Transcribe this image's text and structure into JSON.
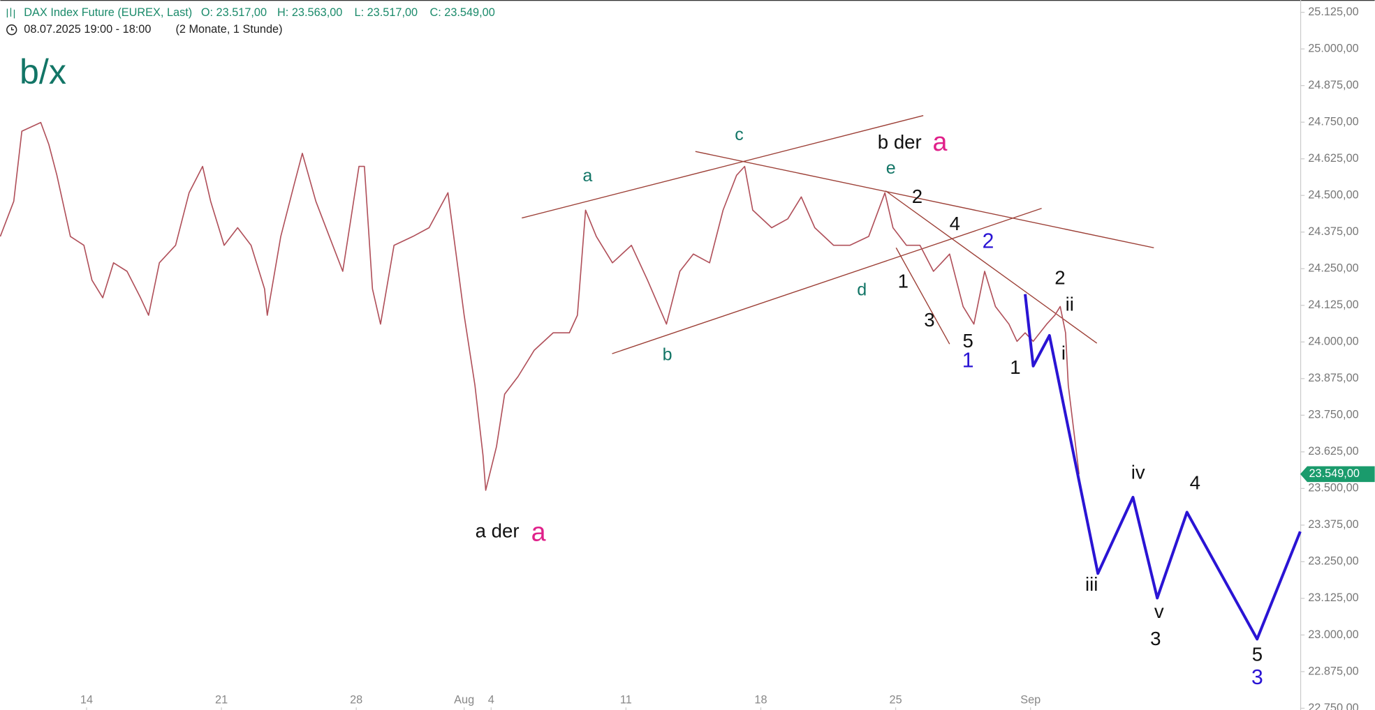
{
  "header": {
    "instrument": "DAX Index Future (EUREX, Last)",
    "open": "O: 23.517,00",
    "high": "H: 23.563,00",
    "low": "L: 23.517,00",
    "close": "C: 23.549,00",
    "session": "08.07.2025 19:00 - 18:00",
    "range": "(2 Monate, 1 Stunde)"
  },
  "chart_data": {
    "type": "line",
    "xlim": [
      -3.2,
      45.0
    ],
    "ylim": [
      22744,
      25167
    ],
    "xticks": [
      {
        "value": 0,
        "label": "14"
      },
      {
        "value": 5,
        "label": "21"
      },
      {
        "value": 10,
        "label": "28"
      },
      {
        "value": 14,
        "label": "Aug"
      },
      {
        "value": 15,
        "label": "4"
      },
      {
        "value": 20,
        "label": "11"
      },
      {
        "value": 25,
        "label": "18"
      },
      {
        "value": 30,
        "label": "25"
      },
      {
        "value": 35,
        "label": "Sep"
      }
    ],
    "yticks": [
      {
        "value": 25125,
        "label": "25.125,00"
      },
      {
        "value": 25000,
        "label": "25.000,00"
      },
      {
        "value": 24875,
        "label": "24.875,00"
      },
      {
        "value": 24750,
        "label": "24.750,00"
      },
      {
        "value": 24625,
        "label": "24.625,00"
      },
      {
        "value": 24500,
        "label": "24.500,00"
      },
      {
        "value": 24375,
        "label": "24.375,00"
      },
      {
        "value": 24250,
        "label": "24.250,00"
      },
      {
        "value": 24125,
        "label": "24.125,00"
      },
      {
        "value": 24000,
        "label": "24.000,00"
      },
      {
        "value": 23875,
        "label": "23.875,00"
      },
      {
        "value": 23750,
        "label": "23.750,00"
      },
      {
        "value": 23625,
        "label": "23.625,00"
      },
      {
        "value": 23500,
        "label": "23.500,00"
      },
      {
        "value": 23375,
        "label": "23.375,00"
      },
      {
        "value": 23250,
        "label": "23.250,00"
      },
      {
        "value": 23125,
        "label": "23.125,00"
      },
      {
        "value": 23000,
        "label": "23.000,00"
      },
      {
        "value": 22875,
        "label": "22.875,00"
      },
      {
        "value": 22750,
        "label": "22.750,00"
      }
    ],
    "series": [
      {
        "color": "#b0505a",
        "width": 1.3,
        "x": [
          -3.2,
          -2.7,
          -2.4,
          -1.7,
          -1.4,
          -1.1,
          -0.6,
          -0.1,
          0.2,
          0.6,
          1.0,
          1.5,
          2.0,
          2.3,
          2.7,
          3.3,
          3.8,
          4.3,
          4.6,
          5.1,
          5.6,
          6.1,
          6.6,
          6.7,
          7.2,
          7.7,
          8.0,
          8.5,
          9.0,
          9.5,
          9.8,
          10.1,
          10.3,
          10.6,
          10.9,
          11.4,
          12.1,
          12.7,
          13.4,
          13.7,
          14.0,
          14.4,
          14.7,
          14.8,
          15.2,
          15.5,
          16.0,
          16.6,
          17.3,
          17.9,
          18.2,
          18.5,
          18.9,
          19.5,
          20.2,
          20.8,
          21.5,
          22.0,
          22.5,
          23.1,
          23.6,
          24.1,
          24.4,
          24.7,
          25.4,
          26.0,
          26.5,
          27.0,
          27.7,
          28.3,
          29.0,
          29.6,
          29.9,
          30.4,
          30.9,
          31.4,
          31.7,
          32.0,
          32.5,
          32.9,
          33.3,
          33.7,
          34.2,
          34.5,
          34.8,
          35.1,
          35.6,
          35.9,
          36.1,
          36.3,
          36.4,
          36.8
        ],
        "values": [
          24360,
          24480,
          24719,
          24749,
          24674,
          24569,
          24360,
          24330,
          24211,
          24151,
          24270,
          24241,
          24151,
          24091,
          24270,
          24330,
          24509,
          24599,
          24480,
          24330,
          24390,
          24330,
          24181,
          24091,
          24360,
          24539,
          24644,
          24480,
          24360,
          24241,
          24420,
          24599,
          24599,
          24181,
          24061,
          24330,
          24360,
          24390,
          24509,
          24300,
          24091,
          23852,
          23613,
          23494,
          23643,
          23822,
          23882,
          23972,
          24031,
          24031,
          24091,
          24450,
          24360,
          24270,
          24330,
          24211,
          24061,
          24241,
          24300,
          24270,
          24450,
          24569,
          24599,
          24450,
          24390,
          24420,
          24495,
          24390,
          24330,
          24330,
          24360,
          24509,
          24390,
          24330,
          24330,
          24241,
          24270,
          24300,
          24121,
          24061,
          24241,
          24121,
          24061,
          24002,
          24031,
          24002,
          24061,
          24091,
          24121,
          24031,
          23852,
          23549
        ]
      },
      {
        "color": "#2a14d4",
        "width": 3.2,
        "x": [
          34.8,
          35.1,
          35.7,
          37.5,
          38.8,
          39.7,
          40.8,
          43.4,
          45.0
        ],
        "values": [
          24163,
          23918,
          24022,
          23210,
          23470,
          23126,
          23419,
          22986,
          23353
        ]
      }
    ],
    "last_price": {
      "value": 23549,
      "label": "23.549,00",
      "color": "#1a9b6c"
    },
    "annotations": [
      {
        "text": "b/x",
        "color": "#127566"
      },
      {
        "text": "a",
        "color": "#127566"
      },
      {
        "text": "c",
        "color": "#127566"
      },
      {
        "text": "e",
        "color": "#127566"
      },
      {
        "text": "d",
        "color": "#127566"
      },
      {
        "text": "b",
        "color": "#127566"
      },
      {
        "text": "b der",
        "color": "#111111"
      },
      {
        "text": "a",
        "color": "#e0208a"
      },
      {
        "text": "2",
        "color": "#111111"
      },
      {
        "text": "4",
        "color": "#111111"
      },
      {
        "text": "1",
        "color": "#111111"
      },
      {
        "text": "3",
        "color": "#111111"
      },
      {
        "text": "5",
        "color": "#111111"
      },
      {
        "text": "1",
        "color": "#2a14d4"
      },
      {
        "text": "2",
        "color": "#2a14d4"
      },
      {
        "text": "2",
        "color": "#111111"
      },
      {
        "text": "ii",
        "color": "#111111"
      },
      {
        "text": "i",
        "color": "#111111"
      },
      {
        "text": "1",
        "color": "#111111"
      },
      {
        "text": "iv",
        "color": "#111111"
      },
      {
        "text": "4",
        "color": "#111111"
      },
      {
        "text": "iii",
        "color": "#111111"
      },
      {
        "text": "v",
        "color": "#111111"
      },
      {
        "text": "3",
        "color": "#111111"
      },
      {
        "text": "5",
        "color": "#111111"
      },
      {
        "text": "3",
        "color": "#2a14d4"
      },
      {
        "text": "a der",
        "color": "#111111"
      },
      {
        "text": "a",
        "color": "#e0208a"
      }
    ]
  }
}
